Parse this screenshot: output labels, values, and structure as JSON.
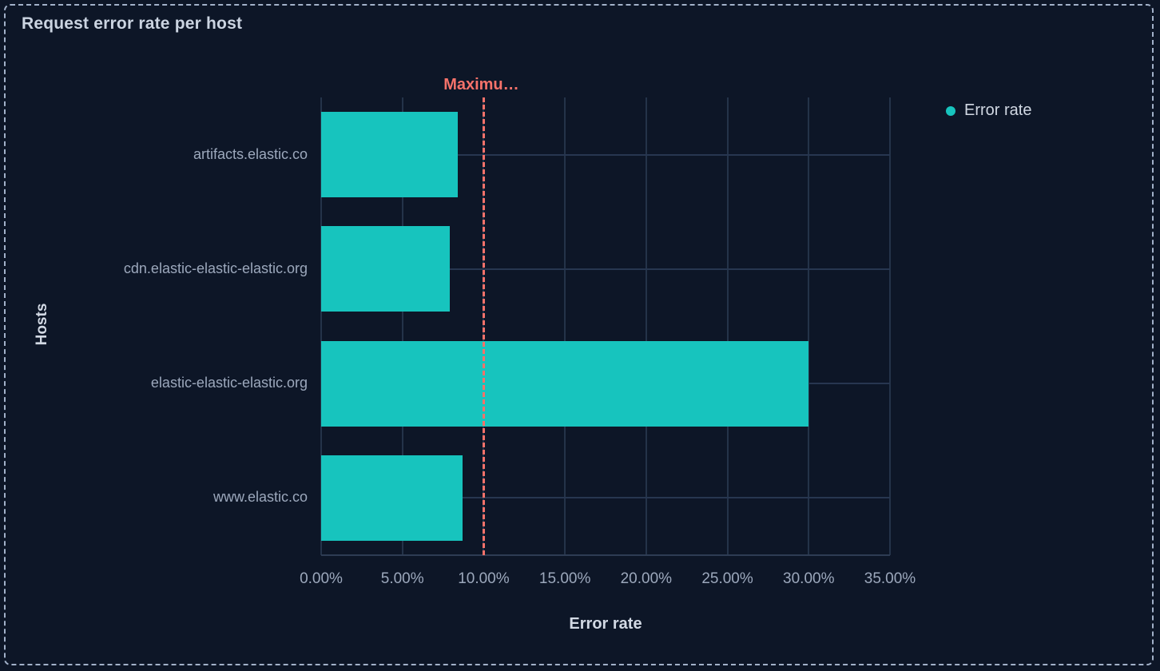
{
  "panel": {
    "title": "Request error rate per host",
    "background_color": "#0D1627",
    "border_color": "#A2B1C9"
  },
  "legend": {
    "position": "right",
    "items": [
      {
        "label": "Error rate",
        "color": "#17C4BE",
        "marker": "circle-icon"
      }
    ]
  },
  "colors": {
    "bar": "#17C4BE",
    "reference": "#F6726A",
    "gridline_vertical": "#243349",
    "gridline_horizontal": "#273650",
    "axis_line": "#2E3C54",
    "tick_label": "#9CA8BC",
    "axis_title": "#D2D9E4"
  },
  "chart_data": {
    "type": "bar",
    "orientation": "horizontal",
    "title": "Request error rate per host",
    "xlabel": "Error rate",
    "ylabel": "Hosts",
    "categories": [
      "artifacts.elastic.co",
      "cdn.elastic-elastic-elastic.org",
      "elastic-elastic-elastic.org",
      "www.elastic.co"
    ],
    "series": [
      {
        "name": "Error rate",
        "color": "#17C4BE",
        "values": [
          8.4,
          7.9,
          30.0,
          8.7
        ]
      }
    ],
    "value_unit": "%",
    "xlim": [
      0,
      35
    ],
    "x_ticks": [
      {
        "value": 0,
        "label": "0.00%"
      },
      {
        "value": 5,
        "label": "5.00%"
      },
      {
        "value": 10,
        "label": "10.00%"
      },
      {
        "value": 15,
        "label": "15.00%"
      },
      {
        "value": 20,
        "label": "20.00%"
      },
      {
        "value": 25,
        "label": "25.00%"
      },
      {
        "value": 30,
        "label": "30.00%"
      },
      {
        "value": 35,
        "label": "35.00%"
      }
    ],
    "reference_line": {
      "value": 10,
      "label": "Maximu…",
      "color": "#F6726A",
      "style": "dashed"
    },
    "grid": true,
    "legend_position": "right"
  }
}
